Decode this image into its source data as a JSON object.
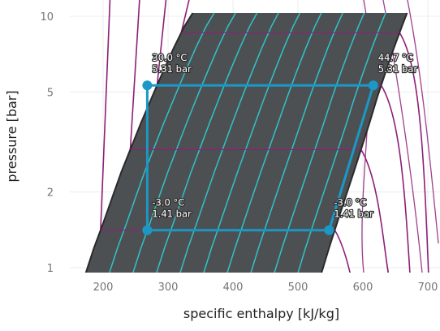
{
  "chart_data": {
    "type": "line",
    "title": "",
    "xlabel": "specific enthalpy [kJ/kg]",
    "ylabel": "pressure [bar]",
    "x_scale": "linear",
    "y_scale": "log",
    "xlim": [
      170,
      700
    ],
    "ylim": [
      0.93,
      10.3
    ],
    "x_ticks": [
      200,
      300,
      400,
      500,
      600,
      700
    ],
    "y_ticks": [
      1,
      2,
      5,
      10
    ],
    "x_tick_labels": [
      "200",
      "300",
      "400",
      "500",
      "600",
      "700"
    ],
    "y_tick_labels": [
      "1",
      "2",
      "5",
      "10"
    ],
    "grid": true,
    "colors": {
      "two_phase_fill": "#4d5053",
      "saturation_dome": "#2a2a2a",
      "quality_lines": "#2fc3c8",
      "isotherms": "#8e1f78",
      "cycle": "#1b98c5",
      "grid": "#ececec"
    },
    "saturation_dome": {
      "liquid_line": [
        [
          172,
          0.93
        ],
        [
          186,
          1.2
        ],
        [
          200,
          1.5
        ],
        [
          214,
          1.9
        ],
        [
          228,
          2.4
        ],
        [
          243,
          3.0
        ],
        [
          258,
          3.75
        ],
        [
          275,
          4.75
        ],
        [
          292,
          6.0
        ],
        [
          309,
          7.5
        ],
        [
          325,
          9.1
        ],
        [
          338,
          10.3
        ]
      ],
      "vapor_line": [
        [
          535,
          0.93
        ],
        [
          548,
          1.2
        ],
        [
          560,
          1.5
        ],
        [
          573,
          1.9
        ],
        [
          586,
          2.4
        ],
        [
          598,
          3.0
        ],
        [
          610,
          3.75
        ],
        [
          622,
          4.75
        ],
        [
          635,
          6.0
        ],
        [
          648,
          7.5
        ],
        [
          660,
          9.1
        ],
        [
          668,
          10.3
        ]
      ]
    },
    "quality_lines_count": 9,
    "isotherm_pressures": [
      1.41,
      2.95,
      5.31,
      8.6
    ],
    "series": [
      {
        "points": [
          {
            "h": 268,
            "p": 5.31,
            "label_temp": "30.0 °C",
            "label_pressure": "5.31 bar"
          },
          {
            "h": 616,
            "p": 5.31,
            "label_temp": "44.7 °C",
            "label_pressure": "5.31 bar"
          },
          {
            "h": 548,
            "p": 1.41,
            "label_temp": "-3.0 °C",
            "label_pressure": "1.41 bar"
          },
          {
            "h": 268,
            "p": 1.41,
            "label_temp": "-3.0 °C",
            "label_pressure": "1.41 bar"
          }
        ]
      }
    ]
  }
}
